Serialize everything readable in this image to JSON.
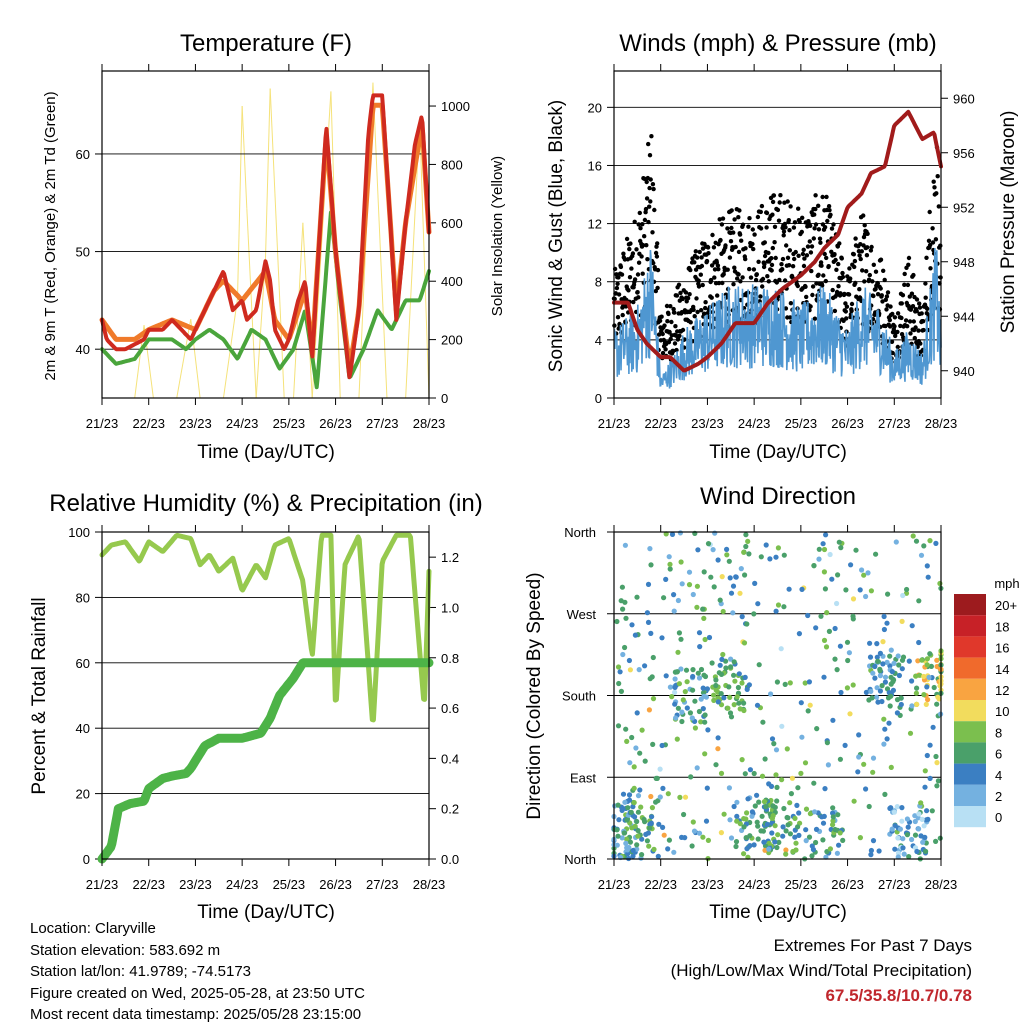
{
  "colors": {
    "temp_2m": "#cf2a1f",
    "temp_9m": "#f07a2a",
    "dewpoint": "#4aa53c",
    "solar": "#f5e27a",
    "wind_sonic": "#4f97d1",
    "wind_gust": "#000000",
    "pressure": "#a11b1b",
    "rh": "#96c94e",
    "precip": "#4db347",
    "extremes_value": "#c0272d"
  },
  "panels": {
    "temperature": {
      "title": "Temperature (F)",
      "xlabel": "Time (Day/UTC)",
      "ylabel_left": "2m & 9m T (Red, Orange) & 2m Td (Green)",
      "ylabel_right": "Solar Insolation (Yellow)"
    },
    "winds": {
      "title": "Winds (mph) & Pressure (mb)",
      "xlabel": "Time (Day/UTC)",
      "ylabel_left": "Sonic Wind & Gust (Blue, Black)",
      "ylabel_right": "Station Pressure (Maroon)"
    },
    "humidity": {
      "title": "Relative Humidity (%) & Precipitation (in)",
      "xlabel": "Time (Day/UTC)",
      "ylabel_left": "Percent & Total Rainfall"
    },
    "direction": {
      "title": "Wind Direction",
      "xlabel": "Time (Day/UTC)",
      "ylabel_left": "Direction (Colored By Speed)",
      "legend_title": "mph"
    }
  },
  "chart_data": [
    {
      "type": "line",
      "title": "Temperature (F)",
      "xlabel": "Time (Day/UTC)",
      "ylabel": "2m & 9m T (Red, Orange) & 2m Td (Green)",
      "y2label": "Solar Insolation (Yellow)",
      "x_ticks": [
        "21/23",
        "22/23",
        "23/23",
        "24/23",
        "25/23",
        "26/23",
        "27/23",
        "28/23"
      ],
      "ylim": [
        35,
        68.5
      ],
      "y_ticks": [
        40,
        50,
        60
      ],
      "y2lim": [
        0,
        1120
      ],
      "y2_ticks": [
        0,
        200,
        400,
        600,
        800,
        1000
      ],
      "grid": "horizontal",
      "series": [
        {
          "name": "2m T",
          "axis": "left",
          "x": [
            0,
            0.1,
            0.3,
            0.5,
            0.7,
            0.9,
            1.0,
            1.3,
            1.5,
            1.7,
            1.9,
            2.0,
            2.2,
            2.4,
            2.6,
            2.8,
            3.0,
            3.1,
            3.3,
            3.5,
            3.6,
            3.7,
            3.9,
            4.0,
            4.2,
            4.35,
            4.5,
            4.8,
            5.0,
            5.3,
            5.5,
            5.7,
            5.8,
            6.0,
            6.3,
            6.5,
            6.7,
            6.85,
            7.0
          ],
          "values": [
            43,
            41,
            40,
            40,
            40.5,
            41,
            42,
            42,
            43,
            42,
            41,
            42,
            44,
            46,
            48,
            44,
            45,
            43,
            44,
            49,
            47,
            42,
            40,
            41,
            45,
            47,
            39,
            63,
            50,
            37,
            44,
            62,
            66,
            66,
            43,
            53,
            61,
            64,
            52
          ]
        },
        {
          "name": "9m T",
          "axis": "left",
          "x": [
            0,
            0.3,
            0.7,
            1.0,
            1.5,
            2.0,
            2.4,
            2.6,
            3.0,
            3.5,
            3.7,
            4.0,
            4.35,
            4.5,
            4.8,
            5.0,
            5.3,
            5.5,
            5.8,
            6.0,
            6.3,
            6.5,
            6.85,
            7.0
          ],
          "values": [
            43,
            41,
            41,
            42,
            43,
            42,
            46,
            47,
            45,
            48,
            43,
            41,
            46,
            40,
            62,
            50,
            38,
            44,
            65,
            65,
            44,
            53,
            63,
            52
          ]
        },
        {
          "name": "2m Td",
          "axis": "left",
          "x": [
            0,
            0.3,
            0.7,
            1.0,
            1.3,
            1.5,
            1.8,
            2.0,
            2.3,
            2.6,
            2.9,
            3.2,
            3.5,
            3.8,
            4.1,
            4.35,
            4.6,
            4.9,
            5.1,
            5.3,
            5.6,
            5.9,
            6.2,
            6.5,
            6.8,
            7.0
          ],
          "values": [
            40,
            38.5,
            39,
            41,
            41,
            41,
            40,
            41,
            42,
            41,
            39,
            42,
            41,
            38,
            40,
            44,
            36,
            54,
            45,
            37,
            40,
            44,
            42,
            45,
            45,
            48
          ]
        },
        {
          "name": "Solar",
          "axis": "right",
          "x": [
            0.7,
            0.9,
            1.1,
            1.6,
            1.9,
            2.1,
            2.6,
            2.9,
            3.0,
            3.1,
            3.3,
            3.5,
            3.6,
            3.9,
            4.1,
            4.3,
            4.5,
            4.9,
            5.1,
            5.5,
            5.8,
            6.1,
            6.5,
            6.8,
            7.0
          ],
          "values": [
            0,
            250,
            0,
            0,
            270,
            0,
            0,
            340,
            1000,
            650,
            0,
            480,
            1060,
            0,
            0,
            600,
            0,
            1050,
            0,
            0,
            1080,
            0,
            0,
            950,
            0
          ]
        }
      ]
    },
    {
      "type": "line",
      "title": "Winds (mph) & Pressure (mb)",
      "xlabel": "Time (Day/UTC)",
      "ylabel": "Sonic Wind & Gust (Blue, Black)",
      "y2label": "Station Pressure (Maroon)",
      "x_ticks": [
        "21/23",
        "22/23",
        "23/23",
        "24/23",
        "25/23",
        "26/23",
        "27/23",
        "28/23"
      ],
      "ylim": [
        0,
        22.5
      ],
      "y_ticks": [
        0,
        4,
        8,
        12,
        16,
        20
      ],
      "y2lim": [
        938.0,
        962.0
      ],
      "y2_ticks": [
        940,
        944,
        948,
        952,
        956,
        960
      ],
      "grid": "horizontal",
      "series": [
        {
          "name": "Sonic Wind",
          "axis": "left",
          "x": [
            0,
            0.5,
            0.8,
            1.0,
            1.3,
            1.5,
            2.0,
            2.5,
            3.0,
            3.5,
            4.0,
            4.5,
            5.0,
            5.3,
            5.7,
            6.0,
            6.3,
            6.6,
            6.9,
            7.0
          ],
          "values": [
            3,
            4,
            7,
            1,
            2,
            3,
            4,
            5,
            5,
            5,
            4,
            5,
            3,
            5,
            4,
            2,
            3,
            2,
            7,
            3
          ]
        },
        {
          "name": "Gust",
          "axis": "left",
          "x": [
            0,
            0.5,
            0.8,
            1.0,
            1.3,
            1.5,
            2.0,
            2.5,
            3.0,
            3.5,
            4.0,
            4.5,
            5.0,
            5.3,
            5.7,
            6.0,
            6.3,
            6.6,
            6.9,
            7.0
          ],
          "values": [
            6,
            9,
            13,
            4,
            5,
            6,
            8,
            9,
            9,
            10,
            9,
            10,
            6,
            9,
            7,
            4,
            7,
            4,
            14,
            6
          ]
        },
        {
          "name": "Station Pressure",
          "axis": "right",
          "x": [
            0,
            0.3,
            0.5,
            0.7,
            1.0,
            1.2,
            1.5,
            1.8,
            2.0,
            2.3,
            2.6,
            3.0,
            3.3,
            3.6,
            4.0,
            4.3,
            4.5,
            4.8,
            5.0,
            5.3,
            5.5,
            5.8,
            6.0,
            6.3,
            6.6,
            6.85,
            7.0
          ],
          "values": [
            945,
            945,
            943,
            942,
            941,
            941,
            940,
            940.5,
            941,
            942,
            943.5,
            943.5,
            945,
            946,
            947,
            948,
            949,
            950,
            952,
            953,
            954.5,
            955,
            958,
            959,
            957,
            957.5,
            955
          ]
        }
      ]
    },
    {
      "type": "line",
      "title": "Relative Humidity (%) & Precipitation (in)",
      "xlabel": "Time (Day/UTC)",
      "ylabel": "Percent & Total Rainfall",
      "x_ticks": [
        "21/23",
        "22/23",
        "23/23",
        "24/23",
        "25/23",
        "26/23",
        "27/23",
        "28/23"
      ],
      "ylim": [
        0,
        100
      ],
      "y_ticks": [
        0,
        20,
        40,
        60,
        80,
        100
      ],
      "y2lim": [
        0,
        1.3
      ],
      "y2_ticks": [
        "0.0",
        "0.2",
        "0.4",
        "0.6",
        "0.8",
        "1.0",
        "1.2"
      ],
      "grid": "horizontal",
      "series": [
        {
          "name": "RH",
          "axis": "left",
          "x": [
            0,
            0.2,
            0.5,
            0.8,
            1.0,
            1.3,
            1.6,
            1.9,
            2.1,
            2.3,
            2.5,
            2.8,
            3.0,
            3.3,
            3.5,
            3.7,
            4.0,
            4.3,
            4.5,
            4.7,
            4.9,
            5.0,
            5.2,
            5.5,
            5.8,
            6.0,
            6.3,
            6.6,
            6.9,
            7.0
          ],
          "values": [
            93,
            96,
            97,
            91,
            97,
            94,
            99,
            98,
            90,
            93,
            88,
            92,
            82,
            90,
            86,
            96,
            98,
            85,
            62,
            99,
            99,
            45,
            90,
            99,
            40,
            91,
            99,
            99,
            46,
            88
          ]
        },
        {
          "name": "Total Rainfall",
          "axis": "right",
          "x": [
            0,
            0.2,
            0.35,
            0.6,
            0.9,
            1.0,
            1.3,
            1.5,
            1.8,
            1.9,
            2.2,
            2.5,
            3.0,
            3.4,
            3.6,
            3.8,
            4.1,
            4.3,
            4.6,
            5.0,
            6.0,
            7.0
          ],
          "values": [
            0,
            0.05,
            0.2,
            0.22,
            0.23,
            0.28,
            0.32,
            0.33,
            0.34,
            0.36,
            0.45,
            0.48,
            0.48,
            0.5,
            0.56,
            0.65,
            0.72,
            0.78,
            0.78,
            0.78,
            0.78,
            0.78
          ]
        }
      ]
    },
    {
      "type": "scatter",
      "title": "Wind Direction",
      "xlabel": "Time (Day/UTC)",
      "ylabel": "Direction (Colored By Speed)",
      "x_ticks": [
        "21/23",
        "22/23",
        "23/23",
        "24/23",
        "25/23",
        "26/23",
        "27/23",
        "28/23"
      ],
      "y_ticks": [
        "North",
        "East",
        "South",
        "West",
        "North"
      ],
      "ylim": [
        0,
        360
      ],
      "legend_title": "mph",
      "legend_labels": [
        "20+",
        "18",
        "16",
        "14",
        "12",
        "10",
        "8",
        "6",
        "4",
        "2",
        "0"
      ],
      "legend_colors": [
        "#9d1b1e",
        "#c72127",
        "#e0382b",
        "#f06a2c",
        "#f9a441",
        "#f2dc5d",
        "#7bbf4e",
        "#4aa06a",
        "#3b7fc2",
        "#74b1e0",
        "#b8e0f4"
      ],
      "clusters": [
        {
          "x": 0.2,
          "dir": 30,
          "speed": 4
        },
        {
          "x": 0.6,
          "dir": 35,
          "speed": 6
        },
        {
          "x": 1.6,
          "dir": 180,
          "speed": 5
        },
        {
          "x": 2.5,
          "dir": 190,
          "speed": 6
        },
        {
          "x": 3.0,
          "dir": 40,
          "speed": 5
        },
        {
          "x": 3.6,
          "dir": 35,
          "speed": 6
        },
        {
          "x": 4.5,
          "dir": 30,
          "speed": 5
        },
        {
          "x": 5.8,
          "dir": 200,
          "speed": 4
        },
        {
          "x": 6.85,
          "dir": 200,
          "speed": 9
        },
        {
          "x": 6.3,
          "dir": 30,
          "speed": 3
        }
      ]
    }
  ],
  "info": {
    "location": "Location: Claryville",
    "elevation": "Station elevation: 583.692 m",
    "latlon": "Station lat/lon: 41.9789; -74.5173",
    "created": "Figure created on Wed, 2025-05-28, at 23:50 UTC",
    "recent": "Most recent data timestamp: 2025/05/28 23:15:00"
  },
  "extremes": {
    "line1": "Extremes For Past 7 Days",
    "line2": "(High/Low/Max Wind/Total Precipitation)",
    "values": "67.5/35.8/10.7/0.78"
  }
}
